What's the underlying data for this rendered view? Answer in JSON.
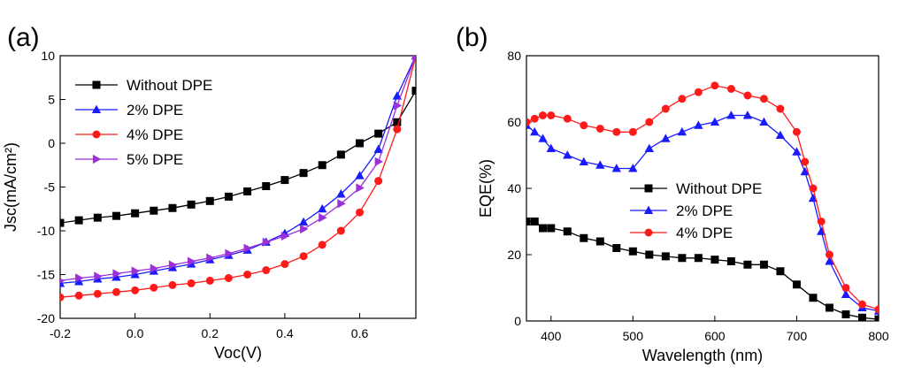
{
  "panels": {
    "a": {
      "label": "(a)"
    },
    "b": {
      "label": "(b)"
    }
  },
  "chart_data": [
    {
      "id": "a",
      "type": "line",
      "title": "",
      "xlabel": "Voc(V)",
      "ylabel": "Jsc(mA/cm²)",
      "xlim": [
        -0.2,
        0.75
      ],
      "ylim": [
        -20,
        10
      ],
      "xticks": [
        -0.2,
        0.0,
        0.2,
        0.4,
        0.6
      ],
      "xtick_labels": [
        "-0.2",
        "0.0",
        "0.2",
        "0.4",
        "0.6"
      ],
      "yticks": [
        -20,
        -15,
        -10,
        -5,
        0,
        5,
        10
      ],
      "ytick_labels": [
        "-20",
        "-15",
        "-10",
        "-5",
        "0",
        "5",
        "10"
      ],
      "legend_position": "top-left",
      "series": [
        {
          "name": "Without DPE",
          "color": "#000000",
          "marker": "square",
          "x": [
            -0.2,
            -0.15,
            -0.1,
            -0.05,
            0.0,
            0.05,
            0.1,
            0.15,
            0.2,
            0.25,
            0.3,
            0.35,
            0.4,
            0.45,
            0.5,
            0.55,
            0.6,
            0.65,
            0.7,
            0.75
          ],
          "y": [
            -9.1,
            -8.8,
            -8.5,
            -8.3,
            -8.0,
            -7.7,
            -7.4,
            -7.0,
            -6.6,
            -6.1,
            -5.5,
            -4.9,
            -4.2,
            -3.4,
            -2.5,
            -1.3,
            0.0,
            1.1,
            2.4,
            6.0
          ]
        },
        {
          "name": "2% DPE",
          "color": "#1a1aff",
          "marker": "triangle",
          "x": [
            -0.2,
            -0.15,
            -0.1,
            -0.05,
            0.0,
            0.05,
            0.1,
            0.15,
            0.2,
            0.25,
            0.3,
            0.35,
            0.4,
            0.45,
            0.5,
            0.55,
            0.6,
            0.65,
            0.7,
            0.75
          ],
          "y": [
            -16.0,
            -15.8,
            -15.5,
            -15.3,
            -15.0,
            -14.6,
            -14.2,
            -13.8,
            -13.3,
            -12.8,
            -12.2,
            -11.3,
            -10.3,
            -9.0,
            -7.5,
            -5.8,
            -3.7,
            -0.7,
            5.4,
            10.0
          ]
        },
        {
          "name": "4% DPE",
          "color": "#ff1a1a",
          "marker": "circle",
          "x": [
            -0.2,
            -0.15,
            -0.1,
            -0.05,
            0.0,
            0.05,
            0.1,
            0.15,
            0.2,
            0.25,
            0.3,
            0.35,
            0.4,
            0.45,
            0.5,
            0.55,
            0.6,
            0.65,
            0.7,
            0.75
          ],
          "y": [
            -17.6,
            -17.4,
            -17.2,
            -17.0,
            -16.8,
            -16.5,
            -16.2,
            -16.0,
            -15.7,
            -15.4,
            -15.0,
            -14.5,
            -13.8,
            -12.9,
            -11.6,
            -10.0,
            -7.9,
            -4.3,
            1.6,
            10.0
          ]
        },
        {
          "name": "5% DPE",
          "color": "#9b30d9",
          "marker": "triangle-right",
          "x": [
            -0.2,
            -0.15,
            -0.1,
            -0.05,
            0.0,
            0.05,
            0.1,
            0.15,
            0.2,
            0.25,
            0.3,
            0.35,
            0.4,
            0.45,
            0.5,
            0.55,
            0.6,
            0.65,
            0.7,
            0.75
          ],
          "y": [
            -15.7,
            -15.4,
            -15.2,
            -14.9,
            -14.6,
            -14.3,
            -13.9,
            -13.5,
            -13.1,
            -12.6,
            -12.0,
            -11.3,
            -10.6,
            -9.8,
            -8.5,
            -6.9,
            -5.1,
            -2.1,
            4.3,
            10.0
          ]
        }
      ]
    },
    {
      "id": "b",
      "type": "line",
      "title": "",
      "xlabel": "Wavelength (nm)",
      "ylabel": "EQE(%)",
      "xlim": [
        370,
        800
      ],
      "ylim": [
        0,
        80
      ],
      "xticks": [
        400,
        500,
        600,
        700,
        800
      ],
      "xtick_labels": [
        "400",
        "500",
        "600",
        "700",
        "800"
      ],
      "yticks": [
        0,
        20,
        40,
        60,
        80
      ],
      "ytick_labels": [
        "0",
        "20",
        "40",
        "60",
        "80"
      ],
      "legend_position": "center",
      "series": [
        {
          "name": "Without DPE",
          "color": "#000000",
          "marker": "square",
          "x": [
            370,
            380,
            390,
            400,
            420,
            440,
            460,
            480,
            500,
            520,
            540,
            560,
            580,
            600,
            620,
            640,
            660,
            680,
            700,
            720,
            740,
            760,
            780,
            800
          ],
          "y": [
            30,
            30,
            28,
            28,
            27,
            25,
            24,
            22,
            21,
            20,
            19.5,
            19,
            19,
            18.5,
            18,
            17,
            17,
            15,
            11,
            7,
            4,
            2,
            1,
            0.5
          ]
        },
        {
          "name": "2% DPE",
          "color": "#1a1aff",
          "marker": "triangle",
          "x": [
            370,
            380,
            390,
            400,
            420,
            440,
            460,
            480,
            500,
            520,
            540,
            560,
            580,
            600,
            620,
            640,
            660,
            680,
            700,
            710,
            720,
            730,
            740,
            760,
            780,
            800
          ],
          "y": [
            59,
            57,
            55,
            52,
            50,
            48,
            47,
            46,
            46,
            52,
            55,
            57,
            59,
            60,
            62,
            62,
            60,
            56,
            51,
            45,
            37,
            27,
            18,
            8,
            4,
            3
          ]
        },
        {
          "name": "4% DPE",
          "color": "#ff1a1a",
          "marker": "circle",
          "x": [
            370,
            380,
            390,
            400,
            420,
            440,
            460,
            480,
            500,
            520,
            540,
            560,
            580,
            600,
            620,
            640,
            660,
            680,
            700,
            710,
            720,
            730,
            740,
            760,
            780,
            800
          ],
          "y": [
            60,
            61,
            62,
            62,
            61,
            59,
            58,
            57,
            57,
            60,
            64,
            67,
            69,
            71,
            70,
            68,
            67,
            64,
            57,
            48,
            40,
            30,
            20,
            10,
            5,
            3.5
          ]
        }
      ]
    }
  ]
}
